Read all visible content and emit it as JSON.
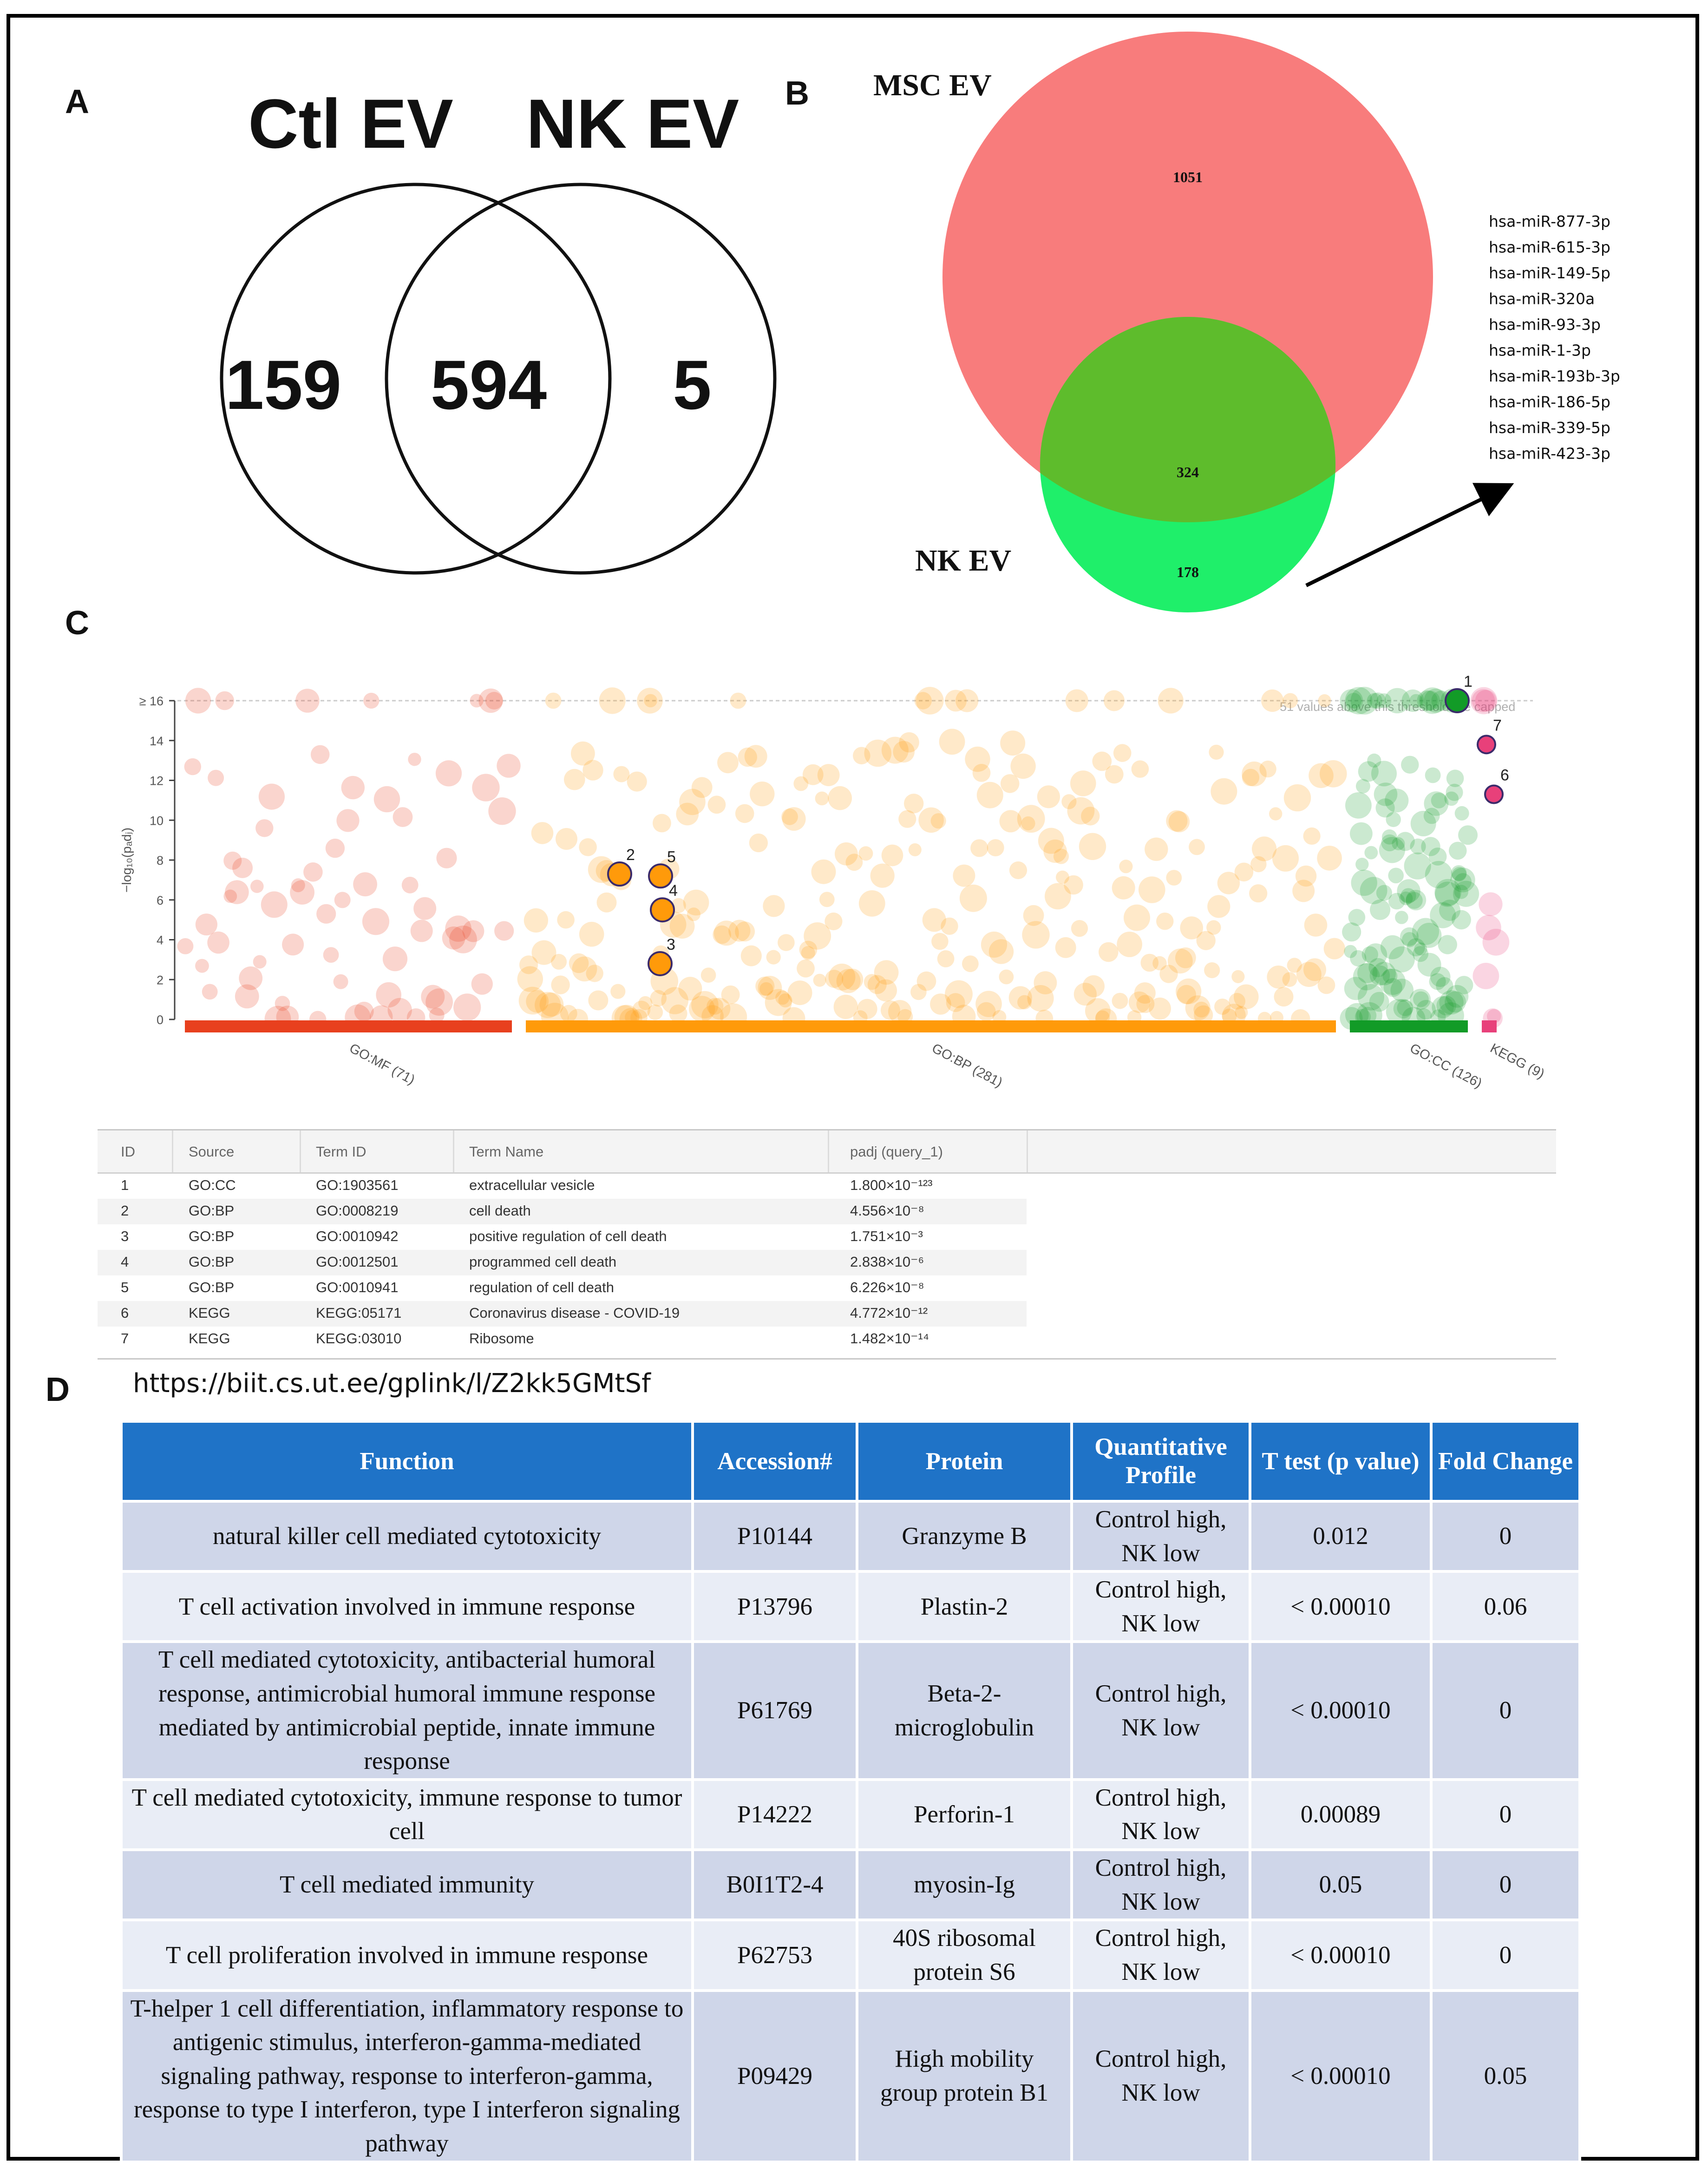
{
  "panels": {
    "a": "A",
    "b": "B",
    "c": "C",
    "d": "D"
  },
  "venn_a": {
    "set_left": "Ctl EV",
    "set_right": "NK EV",
    "left_only": "159",
    "overlap": "594",
    "right_only": "5"
  },
  "venn_b": {
    "set_top": "MSC EV",
    "set_bottom": "NK EV",
    "top_only": "1051",
    "overlap": "324",
    "bottom_only": "178",
    "colors": {
      "top": "#f87c7c",
      "bottom": "#1fef6a",
      "overlap": "#5ebc2c"
    },
    "mirna": [
      "hsa-miR-877-3p",
      "hsa-miR-615-3p",
      "hsa-miR-149-5p",
      "hsa-miR-320a",
      "hsa-miR-93-3p",
      "hsa-miR-1-3p",
      "hsa-miR-193b-3p",
      "hsa-miR-186-5p",
      "hsa-miR-339-5p",
      "hsa-miR-423-3p"
    ]
  },
  "chart_data": {
    "type": "scatter",
    "ylabel": "−log₁₀(pₐdⱼ)",
    "y_ticks": [
      "0",
      "2",
      "4",
      "6",
      "8",
      "10",
      "12",
      "14",
      "≥ 16"
    ],
    "ylim": [
      0,
      16
    ],
    "cap_note": "51 values above this threshold are capped",
    "sources": [
      {
        "name": "GO:MF",
        "label": "GO:MF (71)",
        "count": 71,
        "color": "#e8401e"
      },
      {
        "name": "GO:BP",
        "label": "GO:BP (281)",
        "count": 281,
        "color": "#ff9a0a"
      },
      {
        "name": "GO:CC",
        "label": "GO:CC (126)",
        "count": 126,
        "color": "#129b27"
      },
      {
        "name": "KEGG",
        "label": "KEGG (9)",
        "count": 9,
        "color": "#e8407a"
      }
    ],
    "highlighted": [
      {
        "id": "1",
        "source": "GO:CC",
        "y": 16
      },
      {
        "id": "2",
        "source": "GO:BP",
        "y": 7.3
      },
      {
        "id": "3",
        "source": "GO:BP",
        "y": 2.8
      },
      {
        "id": "4",
        "source": "GO:BP",
        "y": 5.5
      },
      {
        "id": "5",
        "source": "GO:BP",
        "y": 7.2
      },
      {
        "id": "6",
        "source": "KEGG",
        "y": 11.3
      },
      {
        "id": "7",
        "source": "KEGG",
        "y": 13.8
      }
    ]
  },
  "terms_table": {
    "headers": {
      "id": "ID",
      "source": "Source",
      "term_id": "Term ID",
      "term_name": "Term Name",
      "padj": "padj (query_1)"
    },
    "rows": [
      {
        "id": "1",
        "source": "GO:CC",
        "term_id": "GO:1903561",
        "term_name": "extracellular vesicle",
        "padj": "1.800×10⁻¹²³"
      },
      {
        "id": "2",
        "source": "GO:BP",
        "term_id": "GO:0008219",
        "term_name": "cell death",
        "padj": "4.556×10⁻⁸"
      },
      {
        "id": "3",
        "source": "GO:BP",
        "term_id": "GO:0010942",
        "term_name": "positive regulation of cell death",
        "padj": "1.751×10⁻³"
      },
      {
        "id": "4",
        "source": "GO:BP",
        "term_id": "GO:0012501",
        "term_name": "programmed cell death",
        "padj": "2.838×10⁻⁶"
      },
      {
        "id": "5",
        "source": "GO:BP",
        "term_id": "GO:0010941",
        "term_name": "regulation of cell death",
        "padj": "6.226×10⁻⁸"
      },
      {
        "id": "6",
        "source": "KEGG",
        "term_id": "KEGG:05171",
        "term_name": "Coronavirus disease - COVID-19",
        "padj": "4.772×10⁻¹²"
      },
      {
        "id": "7",
        "source": "KEGG",
        "term_id": "KEGG:03010",
        "term_name": "Ribosome",
        "padj": "1.482×10⁻¹⁴"
      }
    ]
  },
  "link": "https://biit.cs.ut.ee/gplink/l/Z2kk5GMtSf",
  "function_table": {
    "headers": [
      "Function",
      "Accession#",
      "Protein",
      "Quantitative Profile",
      "T test (p value)",
      "Fold Change"
    ],
    "rows": [
      [
        "natural killer cell mediated cytotoxicity",
        "P10144",
        "Granzyme B",
        "Control high, NK low",
        "0.012",
        "0"
      ],
      [
        "T cell activation involved in immune response",
        "P13796",
        "Plastin-2",
        "Control high, NK low",
        "< 0.00010",
        "0.06"
      ],
      [
        "T cell mediated cytotoxicity, antibacterial humoral response, antimicrobial humoral immune response mediated by antimicrobial peptide, innate immune response",
        "P61769",
        "Beta-2-microglobulin",
        "Control high, NK low",
        "< 0.00010",
        "0"
      ],
      [
        "T cell mediated cytotoxicity, immune response to tumor cell",
        "P14222",
        "Perforin-1",
        "Control high, NK low",
        "0.00089",
        "0"
      ],
      [
        "T cell mediated immunity",
        "B0I1T2-4",
        "myosin-Ig",
        "Control high, NK low",
        "0.05",
        "0"
      ],
      [
        "T cell proliferation involved in immune response",
        "P62753",
        "40S ribosomal protein S6",
        "Control high, NK low",
        "< 0.00010",
        "0"
      ],
      [
        "T-helper 1 cell differentiation, inflammatory response to antigenic stimulus, interferon-gamma-mediated signaling pathway, response to interferon-gamma, response to type I interferon, type I interferon signaling pathway",
        "P09429",
        "High mobility group protein B1",
        "Control high, NK low",
        "< 0.00010",
        "0.05"
      ]
    ]
  }
}
